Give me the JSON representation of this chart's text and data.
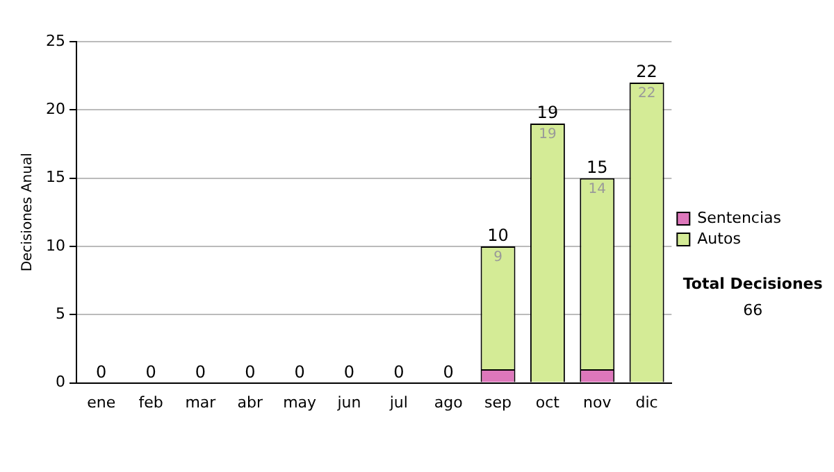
{
  "chart_data": {
    "type": "bar",
    "stacked": true,
    "ylabel": "Decisiones Anual",
    "categories": [
      "ene",
      "feb",
      "mar",
      "abr",
      "may",
      "jun",
      "jul",
      "ago",
      "sep",
      "oct",
      "nov",
      "dic"
    ],
    "series": [
      {
        "name": "Sentencias",
        "color": "#dd77bb",
        "values": [
          0,
          0,
          0,
          0,
          0,
          0,
          0,
          0,
          1,
          0,
          1,
          0
        ]
      },
      {
        "name": "Autos",
        "color": "#d4eb96",
        "values": [
          0,
          0,
          0,
          0,
          0,
          0,
          0,
          0,
          9,
          19,
          14,
          22
        ],
        "value_labels": [
          null,
          null,
          null,
          null,
          null,
          null,
          null,
          null,
          "9",
          "19",
          "14",
          "22"
        ]
      }
    ],
    "totals": [
      "0",
      "0",
      "0",
      "0",
      "0",
      "0",
      "0",
      "0",
      "10",
      "19",
      "15",
      "22"
    ],
    "ylim": [
      0,
      25
    ],
    "yticks": [
      0,
      5,
      10,
      15,
      20,
      25
    ],
    "grid": "y",
    "legend": "right",
    "annotations": [
      "Total Decisiones",
      "66"
    ]
  }
}
